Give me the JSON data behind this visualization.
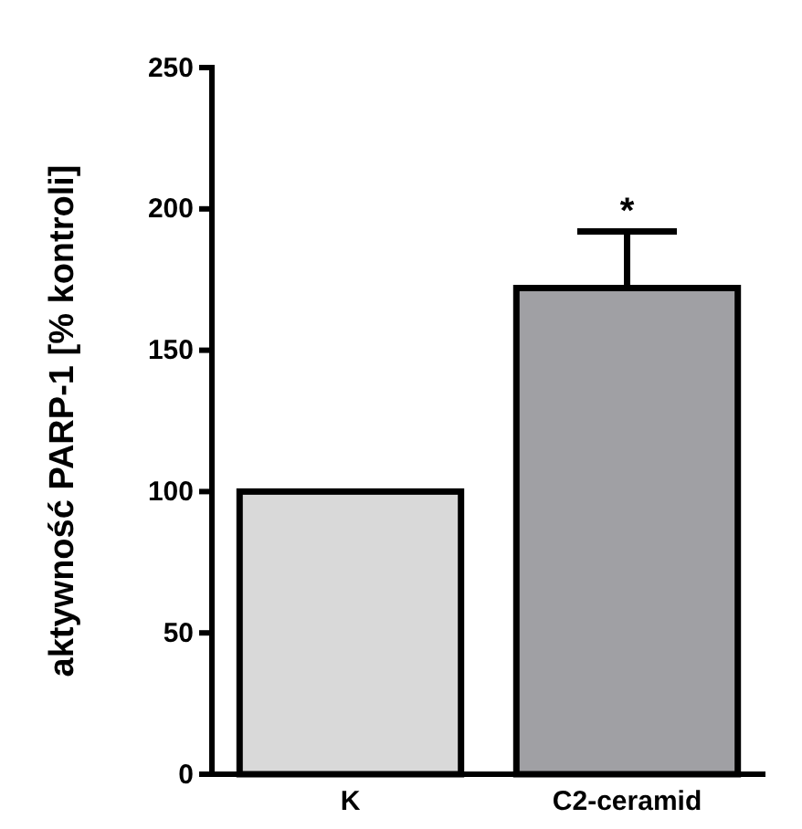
{
  "chart_data": {
    "type": "bar",
    "ylabel": "aktywność PARP-1 [% kontroli]",
    "categories": [
      "K",
      "C2-ceramid"
    ],
    "values": [
      100,
      172
    ],
    "colors": [
      "#d9d9d9",
      "#a0a0a4"
    ],
    "errors": [
      null,
      [
        172,
        192
      ]
    ],
    "ylim": [
      0,
      250
    ],
    "yticks": [
      0,
      50,
      100,
      150,
      200,
      250
    ],
    "grid": false,
    "annotations": [
      {
        "text": "*",
        "x": "C2-ceramid",
        "y": 192
      }
    ]
  }
}
